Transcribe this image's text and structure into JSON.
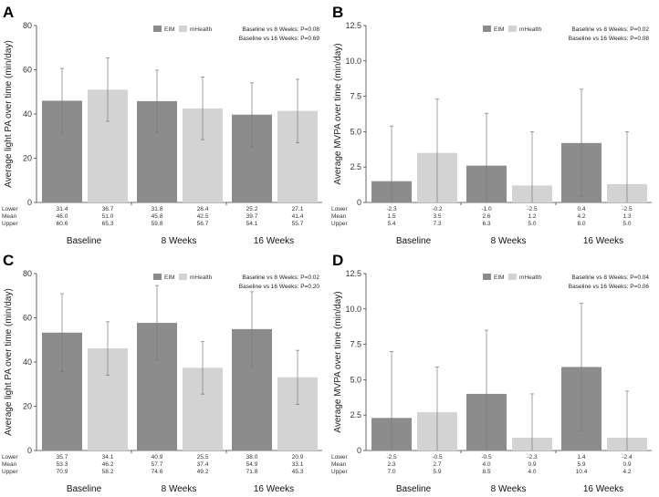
{
  "chart_data": [
    {
      "panel": "A",
      "type": "bar",
      "ylabel": "Average light PA over time (min/day)",
      "ylim": [
        0,
        80
      ],
      "yticks": [
        "0",
        "20",
        "40",
        "60",
        "80"
      ],
      "ytick_values": [
        0,
        20,
        40,
        60,
        80
      ],
      "categories": [
        "Baseline",
        "8 Weeks",
        "16 Weeks"
      ],
      "legend": [
        "EIM",
        "mHealth"
      ],
      "annotations": [
        "Baseline vs 8 Weeks: P=0.08",
        "Baseline vs 16 Weeks: P=0.69"
      ],
      "row_labels": [
        "Lower",
        "Mean",
        "Upper"
      ],
      "series": [
        {
          "name": "EIM",
          "color": "#8c8c8c",
          "values": [
            46.0,
            45.8,
            39.7
          ],
          "lower": [
            31.4,
            31.8,
            25.2
          ],
          "upper": [
            60.6,
            59.8,
            54.1
          ],
          "lower_text": [
            "31.4",
            "31.8",
            "25.2"
          ],
          "mean_text": [
            "46.0",
            "45.8",
            "39.7"
          ],
          "upper_text": [
            "60.6",
            "59.8",
            "54.1"
          ]
        },
        {
          "name": "mHealth",
          "color": "#d3d3d3",
          "values": [
            51.0,
            42.5,
            41.4
          ],
          "lower": [
            36.7,
            28.4,
            27.1
          ],
          "upper": [
            65.3,
            56.7,
            55.7
          ],
          "lower_text": [
            "36.7",
            "28.4",
            "27.1"
          ],
          "mean_text": [
            "51.0",
            "42.5",
            "41.4"
          ],
          "upper_text": [
            "65.3",
            "56.7",
            "55.7"
          ]
        }
      ]
    },
    {
      "panel": "B",
      "type": "bar",
      "ylabel": "Average MVPA over time (min/day)",
      "ylim": [
        0,
        12.5
      ],
      "yticks": [
        "0",
        "2.5",
        "5.0",
        "7.5",
        "10.0",
        "12.5"
      ],
      "ytick_values": [
        0,
        2.5,
        5.0,
        7.5,
        10.0,
        12.5
      ],
      "categories": [
        "Baseline",
        "8 Weeks",
        "16 Weeks"
      ],
      "legend": [
        "EIM",
        "mHealth"
      ],
      "annotations": [
        "Baseline vs 8 Weeks: P=0.02",
        "Baseline vs 16 Weeks: P=0.08"
      ],
      "row_labels": [
        "Lower",
        "Mean",
        "Upper"
      ],
      "series": [
        {
          "name": "EIM",
          "color": "#8c8c8c",
          "values": [
            1.5,
            2.6,
            4.2
          ],
          "lower": [
            -2.3,
            -1.0,
            0.4
          ],
          "upper": [
            5.4,
            6.3,
            8.0
          ],
          "lower_text": [
            "-2.3",
            "-1.0",
            "0.4"
          ],
          "mean_text": [
            "1.5",
            "2.6",
            "4.2"
          ],
          "upper_text": [
            "5.4",
            "6.3",
            "8.0"
          ]
        },
        {
          "name": "mHealth",
          "color": "#d3d3d3",
          "values": [
            3.5,
            1.2,
            1.3
          ],
          "lower": [
            -0.2,
            -2.5,
            -2.5
          ],
          "upper": [
            7.3,
            5.0,
            5.0
          ],
          "lower_text": [
            "-0.2",
            "-2.5",
            "-2.5"
          ],
          "mean_text": [
            "3.5",
            "1.2",
            "1.3"
          ],
          "upper_text": [
            "7.3",
            "5.0",
            "5.0"
          ]
        }
      ]
    },
    {
      "panel": "C",
      "type": "bar",
      "ylabel": "Average light PA over time (min/day)",
      "ylim": [
        0,
        80
      ],
      "yticks": [
        "0",
        "20",
        "40",
        "60",
        "80"
      ],
      "ytick_values": [
        0,
        20,
        40,
        60,
        80
      ],
      "categories": [
        "Baseline",
        "8 Weeks",
        "16 Weeks"
      ],
      "legend": [
        "EIM",
        "mHealth"
      ],
      "annotations": [
        "Baseline vs 8 Weeks: P=0.02",
        "Baseline vs 16 Weeks: P=0.20"
      ],
      "row_labels": [
        "Lower",
        "Mean",
        "Upper"
      ],
      "series": [
        {
          "name": "EIM",
          "color": "#8c8c8c",
          "values": [
            53.3,
            57.7,
            54.9
          ],
          "lower": [
            35.7,
            40.9,
            38.0
          ],
          "upper": [
            70.9,
            74.6,
            71.8
          ],
          "lower_text": [
            "35.7",
            "40.9",
            "38.0"
          ],
          "mean_text": [
            "53.3",
            "57.7",
            "54.9"
          ],
          "upper_text": [
            "70.9",
            "74.6",
            "71.8"
          ]
        },
        {
          "name": "mHealth",
          "color": "#d3d3d3",
          "values": [
            46.2,
            37.4,
            33.1
          ],
          "lower": [
            34.1,
            25.5,
            20.9
          ],
          "upper": [
            58.2,
            49.2,
            45.3
          ],
          "lower_text": [
            "34.1",
            "25.5",
            "20.9"
          ],
          "mean_text": [
            "46.2",
            "37.4",
            "33.1"
          ],
          "upper_text": [
            "58.2",
            "49.2",
            "45.3"
          ]
        }
      ]
    },
    {
      "panel": "D",
      "type": "bar",
      "ylabel": "Average MVPA over time (min/day)",
      "ylim": [
        0,
        12.5
      ],
      "yticks": [
        "0",
        "2.5",
        "5.0",
        "7.5",
        "10.0",
        "12.5"
      ],
      "ytick_values": [
        0,
        2.5,
        5.0,
        7.5,
        10.0,
        12.5
      ],
      "categories": [
        "Baseline",
        "8 Weeks",
        "16 Weeks"
      ],
      "legend": [
        "EIM",
        "mHealth"
      ],
      "annotations": [
        "Baseline vs 8 Weeks: P=0.04",
        "Baseline vs 16 Weeks: P=0.06"
      ],
      "row_labels": [
        "Lower",
        "Mean",
        "Upper"
      ],
      "series": [
        {
          "name": "EIM",
          "color": "#8c8c8c",
          "values": [
            2.3,
            4.0,
            5.9
          ],
          "lower": [
            -2.5,
            -0.5,
            1.4
          ],
          "upper": [
            7.0,
            8.5,
            10.4
          ],
          "lower_text": [
            "-2.5",
            "-0.5",
            "1.4"
          ],
          "mean_text": [
            "2.3",
            "4.0",
            "5.9"
          ],
          "upper_text": [
            "7.0",
            "8.5",
            "10.4"
          ]
        },
        {
          "name": "mHealth",
          "color": "#d3d3d3",
          "values": [
            2.7,
            0.9,
            0.9
          ],
          "lower": [
            -0.5,
            -2.3,
            -2.4
          ],
          "upper": [
            5.9,
            4.0,
            4.2
          ],
          "lower_text": [
            "-0.5",
            "-2.3",
            "-2.4"
          ],
          "mean_text": [
            "2.7",
            "0.9",
            "0.9"
          ],
          "upper_text": [
            "5.9",
            "4.0",
            "4.2"
          ]
        }
      ]
    }
  ]
}
